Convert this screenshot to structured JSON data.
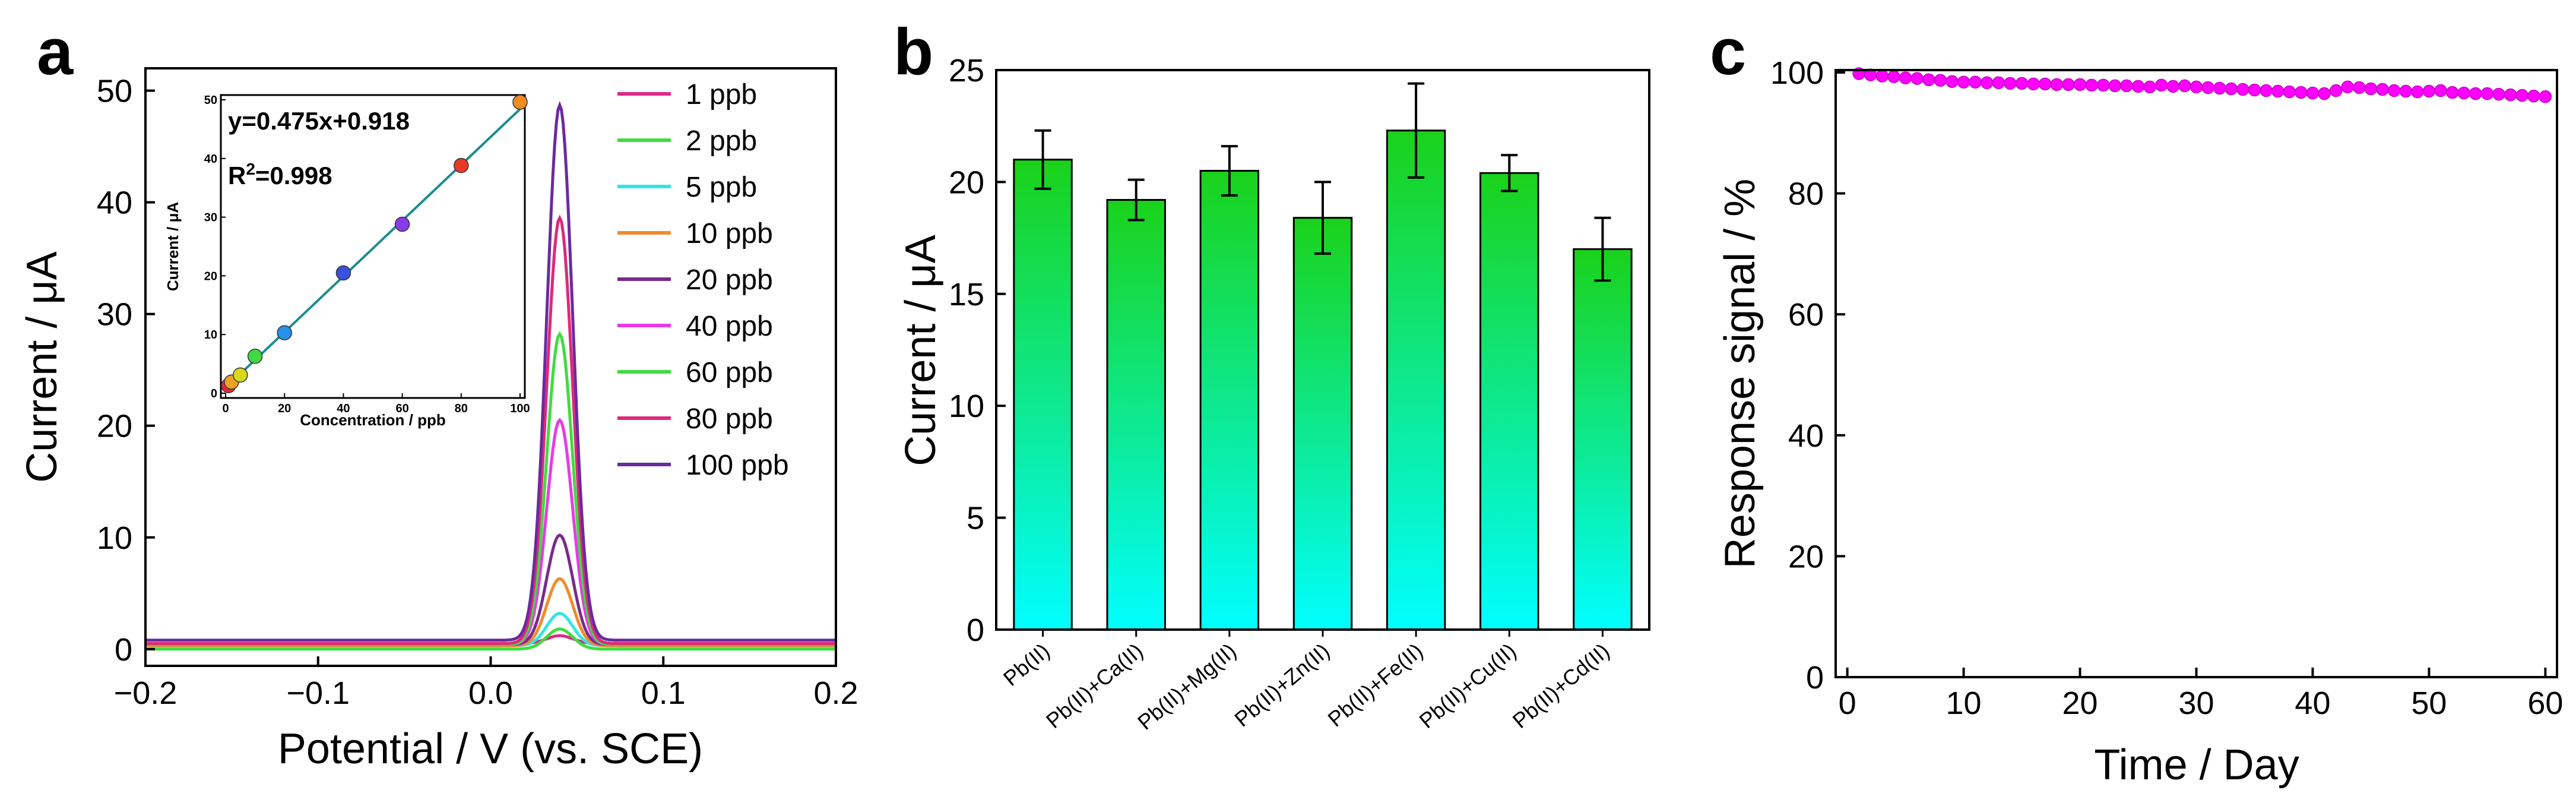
{
  "panels": {
    "a": "a",
    "b": "b",
    "c": "c"
  },
  "colors": {
    "axis": "#000000",
    "bar_top": "#1ad21a",
    "bar_bottom": "#00ffff",
    "marker_c": "#ff00ff",
    "inset_line": "#1a8c8c"
  },
  "chart_data": [
    {
      "id": "a",
      "type": "line",
      "xlabel": "Potential / V (vs. SCE)",
      "ylabel": "Current / μA",
      "xlim": [
        -0.2,
        0.2
      ],
      "ylim": [
        -1.5,
        52
      ],
      "x_ticks": [
        -0.2,
        -0.1,
        0.0,
        0.1,
        0.2
      ],
      "y_ticks": [
        0,
        10,
        20,
        30,
        40,
        50
      ],
      "legend_position": "top-right",
      "peak_potential": 0.04,
      "series": [
        {
          "name": "1 ppb",
          "color": "#e0288a",
          "baseline": 0.5,
          "peak": 1.2
        },
        {
          "name": "2 ppb",
          "color": "#3fdc3f",
          "baseline": 0.0,
          "peak": 1.8
        },
        {
          "name": "5 ppb",
          "color": "#2fe6e6",
          "baseline": 0.3,
          "peak": 3.2
        },
        {
          "name": "10 ppb",
          "color": "#f08c2a",
          "baseline": 0.3,
          "peak": 6.3
        },
        {
          "name": "20 ppb",
          "color": "#7a2a8a",
          "baseline": 0.4,
          "peak": 10.2
        },
        {
          "name": "40 ppb",
          "color": "#e83ae8",
          "baseline": 0.4,
          "peak": 20.5
        },
        {
          "name": "60 ppb",
          "color": "#3fdc3f",
          "baseline": 0.4,
          "peak": 28.2
        },
        {
          "name": "80 ppb",
          "color": "#e0287a",
          "baseline": 0.5,
          "peak": 38.6
        },
        {
          "name": "100 ppb",
          "color": "#6a2aa0",
          "baseline": 0.8,
          "peak": 48.7
        }
      ],
      "inset": {
        "type": "scatter",
        "xlabel": "Concentration / ppb",
        "ylabel": "Current / μA",
        "xlim": [
          0,
          100
        ],
        "ylim": [
          0,
          50
        ],
        "x_ticks": [
          0,
          20,
          40,
          60,
          80,
          100
        ],
        "y_ticks": [
          0,
          10,
          20,
          30,
          40,
          50
        ],
        "equation": "y=0.475x+0.918",
        "r2_prefix": "R",
        "r2_sup": "2",
        "r2_value": "=0.998",
        "fit": {
          "slope": 0.475,
          "intercept": 0.918
        },
        "points": [
          {
            "x": 1,
            "y": 1.3,
            "color": "#e8283a"
          },
          {
            "x": 2,
            "y": 1.9,
            "color": "#f0a020"
          },
          {
            "x": 5,
            "y": 3.1,
            "color": "#d8d820"
          },
          {
            "x": 10,
            "y": 6.3,
            "color": "#40d840"
          },
          {
            "x": 20,
            "y": 10.3,
            "color": "#2890e8"
          },
          {
            "x": 40,
            "y": 20.5,
            "color": "#3a50e0"
          },
          {
            "x": 60,
            "y": 28.8,
            "color": "#8a3ae8"
          },
          {
            "x": 80,
            "y": 38.8,
            "color": "#e83a28"
          },
          {
            "x": 100,
            "y": 49.6,
            "color": "#f08c20"
          }
        ]
      }
    },
    {
      "id": "b",
      "type": "bar",
      "ylabel": "Current / μA",
      "ylim": [
        0,
        25
      ],
      "y_ticks": [
        0,
        5,
        10,
        15,
        20,
        25
      ],
      "categories": [
        "Pb(II)",
        "Pb(II)+Ca(II)",
        "Pb(II)+Mg(II)",
        "Pb(II)+Zn(II)",
        "Pb(II)+Fe(II)",
        "Pb(II)+Cu(II)",
        "Pb(II)+Cd(II)"
      ],
      "values": [
        21.0,
        19.2,
        20.5,
        18.4,
        22.3,
        20.4,
        17.0
      ],
      "errors": [
        1.3,
        0.9,
        1.1,
        1.6,
        2.1,
        0.8,
        1.4
      ]
    },
    {
      "id": "c",
      "type": "scatter",
      "xlabel": "Time / Day",
      "ylabel": "Response signal / %",
      "xlim": [
        -1,
        61
      ],
      "ylim": [
        0,
        100
      ],
      "x_ticks": [
        0,
        10,
        20,
        30,
        40,
        50,
        60
      ],
      "y_ticks": [
        0,
        20,
        40,
        60,
        80,
        100
      ],
      "x": [
        1,
        2,
        3,
        4,
        5,
        6,
        7,
        8,
        9,
        10,
        11,
        12,
        13,
        14,
        15,
        16,
        17,
        18,
        19,
        20,
        21,
        22,
        23,
        24,
        25,
        26,
        27,
        28,
        29,
        30,
        31,
        32,
        33,
        34,
        35,
        36,
        37,
        38,
        39,
        40,
        41,
        42,
        43,
        44,
        45,
        46,
        47,
        48,
        49,
        50,
        51,
        52,
        53,
        54,
        55,
        56,
        57,
        58,
        59,
        60
      ],
      "y": [
        99.8,
        99.6,
        99.4,
        99.3,
        99.1,
        99.0,
        98.8,
        98.7,
        98.5,
        98.4,
        98.4,
        98.3,
        98.3,
        98.2,
        98.2,
        98.1,
        98.1,
        98.0,
        98.0,
        98.0,
        97.9,
        97.9,
        97.8,
        97.8,
        97.7,
        97.6,
        97.9,
        97.7,
        97.8,
        97.6,
        97.5,
        97.4,
        97.3,
        97.2,
        97.1,
        97.0,
        96.9,
        96.8,
        96.7,
        96.6,
        96.5,
        97.0,
        97.6,
        97.5,
        97.3,
        97.2,
        97.0,
        96.9,
        96.8,
        96.9,
        97.0,
        96.7,
        96.6,
        96.5,
        96.5,
        96.4,
        96.3,
        96.2,
        96.1,
        96.0
      ]
    }
  ]
}
